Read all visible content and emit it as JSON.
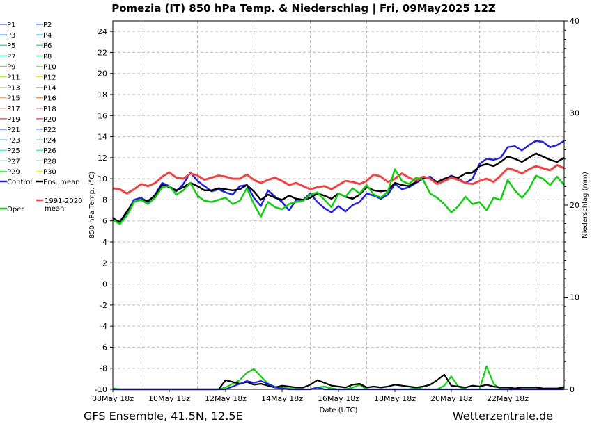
{
  "title": "Pomezia  (IT)  850 hPa Temp. & Niederschlag | Fri, 09May2025 12Z",
  "footer_left": "GFS Ensemble, 41.5N, 12.5E",
  "footer_right": "Wetterzentrale.de",
  "colors": {
    "grid": "#bbbbbb",
    "control": "#2222dd",
    "ens_mean": "#000000",
    "clim_mean": "#ee4444",
    "oper": "#11cc11"
  },
  "chart_data": {
    "type": "line",
    "xlabel": "Date (UTC)",
    "ylabel": "850 hPa Temp. (°C)",
    "y2label": "Niederschlag (mm)",
    "x_range_hours": [
      0,
      384
    ],
    "x_ticks": [
      {
        "label": "08May 18z",
        "hour": 0
      },
      {
        "label": "10May 18z",
        "hour": 48
      },
      {
        "label": "12May 18z",
        "hour": 96
      },
      {
        "label": "14May 18z",
        "hour": 144
      },
      {
        "label": "16May 18z",
        "hour": 192
      },
      {
        "label": "18May 18z",
        "hour": 240
      },
      {
        "label": "20May 18z",
        "hour": 288
      },
      {
        "label": "22May 18z",
        "hour": 336
      }
    ],
    "ylim": [
      -10,
      25
    ],
    "y_ticks": [
      -10,
      -8,
      -6,
      -4,
      -2,
      0,
      2,
      4,
      6,
      8,
      10,
      12,
      14,
      16,
      18,
      20,
      22,
      24
    ],
    "y2lim": [
      0,
      40
    ],
    "y2_ticks": [
      0,
      10,
      20,
      30,
      40
    ],
    "grid": true,
    "legend_position": "left",
    "legend": [
      {
        "label": "P1",
        "color": "#3355ff"
      },
      {
        "label": "P2",
        "color": "#2277ff"
      },
      {
        "label": "P3",
        "color": "#2299ee"
      },
      {
        "label": "P4",
        "color": "#22bbdd"
      },
      {
        "label": "P5",
        "color": "#22ccbb"
      },
      {
        "label": "P6",
        "color": "#22ccaa"
      },
      {
        "label": "P7",
        "color": "#22dd99"
      },
      {
        "label": "P8",
        "color": "#33dd77"
      },
      {
        "label": "P9",
        "color": "#55ee55"
      },
      {
        "label": "P10",
        "color": "#77ee33"
      },
      {
        "label": "P11",
        "color": "#aaee33"
      },
      {
        "label": "P12",
        "color": "#dddd44"
      },
      {
        "label": "P13",
        "color": "#eedd55"
      },
      {
        "label": "P14",
        "color": "#ddbb55"
      },
      {
        "label": "P15",
        "color": "#eeaa55"
      },
      {
        "label": "P16",
        "color": "#dd8833"
      },
      {
        "label": "P17",
        "color": "#dd7744"
      },
      {
        "label": "P18",
        "color": "#cc5533"
      },
      {
        "label": "P19",
        "color": "#bb4433"
      },
      {
        "label": "P20",
        "color": "#cc3333"
      },
      {
        "label": "P21",
        "color": "#3366ee"
      },
      {
        "label": "P22",
        "color": "#3399ff"
      },
      {
        "label": "P23",
        "color": "#44bbee"
      },
      {
        "label": "P24",
        "color": "#55ccee"
      },
      {
        "label": "P25",
        "color": "#44ddcc"
      },
      {
        "label": "P26",
        "color": "#33ddaa"
      },
      {
        "label": "P27",
        "color": "#33ee88"
      },
      {
        "label": "P28",
        "color": "#44dd66"
      },
      {
        "label": "P29",
        "color": "#44ee44"
      },
      {
        "label": "P30",
        "color": "#eeee44"
      },
      {
        "label": "Control",
        "color": "#2222dd",
        "thick": true
      },
      {
        "label": "Ens. mean",
        "color": "#000000",
        "thick": true
      },
      {
        "label": "1991-2020 mean",
        "color": "#ee4444",
        "thick": true
      },
      {
        "label": "Oper",
        "color": "#11cc11",
        "thick": true
      }
    ],
    "series": [
      {
        "name": "Control",
        "color": "#2222dd",
        "width": 2.5,
        "x": [
          0,
          6,
          12,
          18,
          24,
          30,
          36,
          42,
          48,
          54,
          60,
          66,
          72,
          78,
          84,
          90,
          96,
          102,
          108,
          114,
          120,
          126,
          132,
          138,
          144,
          150,
          156,
          162,
          168,
          174,
          180,
          186,
          192,
          198,
          204,
          210,
          216,
          222,
          228,
          234,
          240,
          246,
          252,
          258,
          264,
          270,
          276,
          282,
          288,
          294,
          300,
          306,
          312,
          318,
          324,
          330,
          336,
          342,
          348,
          354,
          360,
          366,
          372,
          378,
          384
        ],
        "y": [
          6.3,
          5.8,
          6.8,
          8.0,
          8.2,
          7.8,
          8.5,
          9.6,
          9.3,
          8.8,
          9.5,
          10.6,
          9.8,
          9.3,
          8.8,
          9.0,
          8.7,
          8.5,
          9.3,
          9.4,
          8.2,
          7.4,
          8.9,
          8.3,
          7.8,
          7.0,
          8.0,
          8.0,
          8.6,
          7.8,
          7.2,
          6.8,
          7.4,
          6.9,
          7.5,
          7.8,
          8.6,
          8.4,
          8.1,
          8.5,
          9.5,
          9.0,
          9.2,
          9.6,
          10.0,
          10.2,
          9.6,
          9.9,
          10.3,
          10.0,
          9.6,
          10.0,
          11.4,
          11.9,
          11.8,
          12.0,
          13.0,
          13.1,
          12.7,
          13.2,
          13.6,
          13.5,
          13.0,
          13.2,
          13.6
        ]
      },
      {
        "name": "Ens. mean",
        "color": "#000000",
        "width": 2.5,
        "x": [
          0,
          6,
          12,
          18,
          24,
          30,
          36,
          42,
          48,
          54,
          60,
          66,
          72,
          78,
          84,
          90,
          96,
          102,
          108,
          114,
          120,
          126,
          132,
          138,
          144,
          150,
          156,
          162,
          168,
          174,
          180,
          186,
          192,
          198,
          204,
          210,
          216,
          222,
          228,
          234,
          240,
          246,
          252,
          258,
          264,
          270,
          276,
          282,
          288,
          294,
          300,
          306,
          312,
          318,
          324,
          330,
          336,
          342,
          348,
          354,
          360,
          366,
          372,
          378,
          384
        ],
        "y": [
          6.2,
          5.9,
          6.9,
          7.8,
          8.0,
          7.9,
          8.4,
          9.4,
          9.2,
          8.9,
          9.2,
          9.6,
          9.3,
          8.9,
          8.9,
          9.1,
          9.0,
          8.9,
          9.0,
          9.4,
          8.8,
          8.0,
          8.5,
          8.2,
          8.0,
          8.4,
          8.1,
          8.0,
          8.2,
          8.6,
          8.4,
          8.1,
          8.6,
          8.3,
          8.1,
          8.5,
          9.2,
          8.9,
          8.8,
          8.9,
          9.6,
          9.4,
          9.3,
          9.7,
          10.1,
          10.0,
          9.7,
          10.0,
          10.2,
          10.1,
          10.5,
          10.6,
          11.2,
          11.4,
          11.2,
          11.6,
          12.1,
          11.9,
          11.6,
          12.0,
          12.4,
          12.1,
          11.8,
          11.6,
          12.0
        ]
      },
      {
        "name": "1991-2020 mean",
        "color": "#ee4444",
        "width": 3,
        "x": [
          0,
          6,
          12,
          18,
          24,
          30,
          36,
          42,
          48,
          54,
          60,
          66,
          72,
          78,
          84,
          90,
          96,
          102,
          108,
          114,
          120,
          126,
          132,
          138,
          144,
          150,
          156,
          162,
          168,
          174,
          180,
          186,
          192,
          198,
          204,
          210,
          216,
          222,
          228,
          234,
          240,
          246,
          252,
          258,
          264,
          270,
          276,
          282,
          288,
          294,
          300,
          306,
          312,
          318,
          324,
          330,
          336,
          342,
          348,
          354,
          360,
          366,
          372,
          378,
          384
        ],
        "y": [
          9.1,
          9.0,
          8.6,
          9.0,
          9.5,
          9.3,
          9.6,
          10.2,
          10.6,
          10.1,
          10.0,
          10.5,
          10.3,
          9.9,
          10.1,
          10.3,
          10.2,
          10.0,
          10.0,
          10.4,
          9.9,
          9.6,
          9.9,
          10.1,
          9.8,
          9.4,
          9.6,
          9.3,
          9.0,
          9.2,
          9.3,
          9.0,
          9.4,
          9.8,
          9.7,
          9.5,
          9.8,
          10.4,
          10.2,
          9.7,
          10.0,
          10.5,
          10.1,
          9.8,
          10.2,
          10.0,
          9.5,
          9.8,
          10.1,
          9.9,
          9.6,
          9.5,
          9.8,
          10.0,
          9.7,
          10.3,
          11.0,
          10.8,
          10.5,
          10.9,
          11.2,
          11.0,
          10.8,
          11.3,
          11.0
        ]
      },
      {
        "name": "Oper",
        "color": "#11cc11",
        "width": 2.5,
        "x": [
          0,
          6,
          12,
          18,
          24,
          30,
          36,
          42,
          48,
          54,
          60,
          66,
          72,
          78,
          84,
          90,
          96,
          102,
          108,
          114,
          120,
          126,
          132,
          138,
          144,
          150,
          156,
          162,
          168,
          174,
          180,
          186,
          192,
          198,
          204,
          210,
          216,
          222,
          228,
          234,
          240,
          246,
          252,
          258,
          264,
          270,
          276,
          282,
          288,
          294,
          300,
          306,
          312,
          318,
          324,
          330,
          336,
          342,
          348,
          354,
          360,
          366,
          372,
          378,
          384
        ],
        "y": [
          6.1,
          5.7,
          6.5,
          7.8,
          8.0,
          7.6,
          8.2,
          9.2,
          9.3,
          8.5,
          8.9,
          9.6,
          8.4,
          7.9,
          7.8,
          8.0,
          8.2,
          7.6,
          7.9,
          9.1,
          7.6,
          6.4,
          7.8,
          7.3,
          7.1,
          7.6,
          7.8,
          7.9,
          8.5,
          8.7,
          8.0,
          7.3,
          8.6,
          8.3,
          9.1,
          8.6,
          9.4,
          8.5,
          8.2,
          8.8,
          10.9,
          9.8,
          9.5,
          10.1,
          9.9,
          8.6,
          8.2,
          7.6,
          6.8,
          7.4,
          8.3,
          7.6,
          7.8,
          7.0,
          8.2,
          8.0,
          9.9,
          8.9,
          8.2,
          9.0,
          10.3,
          10.0,
          9.4,
          10.2,
          9.4
        ]
      }
    ],
    "precipitation": [
      {
        "name": "Oper",
        "color": "#11cc11",
        "x": [
          0,
          6,
          12,
          18,
          24,
          30,
          36,
          42,
          48,
          54,
          60,
          66,
          72,
          78,
          84,
          90,
          96,
          102,
          108,
          114,
          120,
          126,
          132,
          138,
          144,
          150,
          156,
          162,
          168,
          174,
          180,
          186,
          192,
          198,
          204,
          210,
          216,
          222,
          228,
          234,
          240,
          246,
          252,
          258,
          264,
          270,
          276,
          282,
          288,
          294,
          300,
          306,
          312,
          318,
          324,
          330,
          336,
          342,
          348,
          354,
          360,
          366,
          372,
          378,
          384
        ],
        "y": [
          0.1,
          0,
          0,
          0,
          0,
          0,
          0,
          0,
          0,
          0,
          0,
          0,
          0,
          0,
          0,
          0,
          0.2,
          0.6,
          1.0,
          1.8,
          2.2,
          1.4,
          0.6,
          0.3,
          0.2,
          0.1,
          0,
          0,
          0,
          0.2,
          0.3,
          0.1,
          0,
          0,
          0.2,
          0.5,
          0,
          0,
          0,
          0,
          0,
          0,
          0,
          0.2,
          0,
          0,
          0,
          0.4,
          1.4,
          0.3,
          0,
          0,
          0,
          2.5,
          0.6,
          0,
          0,
          0,
          0,
          0,
          0,
          0,
          0,
          0,
          0.3
        ]
      },
      {
        "name": "Ens. mean",
        "color": "#000000",
        "x": [
          0,
          6,
          12,
          18,
          24,
          30,
          36,
          42,
          48,
          54,
          60,
          66,
          72,
          78,
          84,
          90,
          96,
          102,
          108,
          114,
          120,
          126,
          132,
          138,
          144,
          150,
          156,
          162,
          168,
          174,
          180,
          186,
          192,
          198,
          204,
          210,
          216,
          222,
          228,
          234,
          240,
          246,
          252,
          258,
          264,
          270,
          276,
          282,
          288,
          294,
          300,
          306,
          312,
          318,
          324,
          330,
          336,
          342,
          348,
          354,
          360,
          366,
          372,
          378,
          384
        ],
        "y": [
          0,
          0,
          0,
          0,
          0,
          0,
          0,
          0,
          0,
          0,
          0,
          0,
          0,
          0,
          0,
          0,
          1.0,
          0.8,
          0.6,
          0.8,
          0.5,
          0.6,
          0.4,
          0.2,
          0.4,
          0.3,
          0.2,
          0.2,
          0.5,
          1.0,
          0.7,
          0.4,
          0.3,
          0.2,
          0.5,
          0.6,
          0.2,
          0.3,
          0.2,
          0.3,
          0.5,
          0.4,
          0.3,
          0.2,
          0.3,
          0.5,
          1.0,
          1.6,
          0.4,
          0.3,
          0.2,
          0.4,
          0.3,
          0.5,
          0.3,
          0.2,
          0.2,
          0.1,
          0.2,
          0.2,
          0.2,
          0.1,
          0.1,
          0.1,
          0.2
        ]
      },
      {
        "name": "Control",
        "color": "#2222dd",
        "x": [
          0,
          6,
          12,
          18,
          24,
          30,
          36,
          42,
          48,
          54,
          60,
          66,
          72,
          78,
          84,
          90,
          96,
          102,
          108,
          114,
          120,
          126,
          132,
          138,
          144,
          150,
          156,
          162,
          168,
          174,
          180,
          186,
          192,
          198,
          204,
          210,
          216,
          222,
          228,
          234,
          240,
          246,
          252,
          258,
          264,
          270,
          276,
          282,
          288,
          294,
          300,
          306,
          312,
          318,
          324,
          330,
          336,
          342,
          348,
          354,
          360,
          366,
          372,
          378,
          384
        ],
        "y": [
          0,
          0,
          0,
          0,
          0,
          0,
          0,
          0,
          0,
          0,
          0,
          0,
          0,
          0,
          0,
          0,
          0,
          0.3,
          0.6,
          0.9,
          0.7,
          0.9,
          0.6,
          0.2,
          0.1,
          0,
          0,
          0,
          0,
          0.2,
          0,
          0,
          0,
          0,
          0,
          0,
          0,
          0,
          0,
          0,
          0,
          0,
          0,
          0,
          0,
          0,
          0,
          0,
          0,
          0,
          0,
          0,
          0,
          0,
          0,
          0,
          0,
          0,
          0,
          0,
          0,
          0,
          0,
          0,
          0
        ]
      }
    ]
  }
}
